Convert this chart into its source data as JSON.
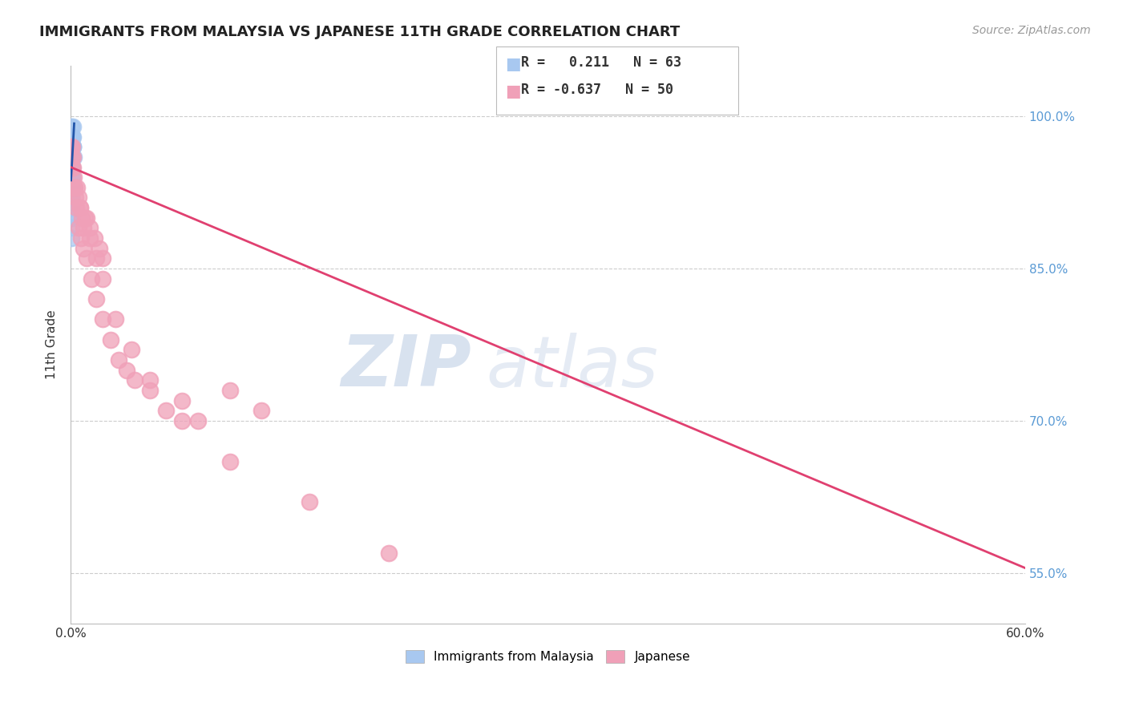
{
  "title": "IMMIGRANTS FROM MALAYSIA VS JAPANESE 11TH GRADE CORRELATION CHART",
  "source": "Source: ZipAtlas.com",
  "ylabel": "11th Grade",
  "right_yticks": [
    "100.0%",
    "85.0%",
    "70.0%",
    "55.0%"
  ],
  "right_ytick_vals": [
    1.0,
    0.85,
    0.7,
    0.55
  ],
  "legend_blue_r": "0.211",
  "legend_blue_n": "63",
  "legend_pink_r": "-0.637",
  "legend_pink_n": "50",
  "blue_color": "#A8C8F0",
  "pink_color": "#F0A0B8",
  "blue_line_color": "#2255AA",
  "pink_line_color": "#E04070",
  "watermark_zip": "ZIP",
  "watermark_atlas": "atlas",
  "xmin": 0.0,
  "xmax": 0.6,
  "ymin": 0.5,
  "ymax": 1.05,
  "grid_color": "#CCCCCC",
  "background_color": "#FFFFFF",
  "blue_scatter_x": [
    0.0002,
    0.0003,
    0.0005,
    0.0004,
    0.0006,
    0.0003,
    0.0004,
    0.0005,
    0.0006,
    0.0007,
    0.0004,
    0.0005,
    0.0003,
    0.0006,
    0.0005,
    0.0004,
    0.0007,
    0.0003,
    0.0005,
    0.0006,
    0.0004,
    0.0005,
    0.0003,
    0.0006,
    0.0007,
    0.0005,
    0.0004,
    0.0006,
    0.0003,
    0.0005,
    0.0007,
    0.0004,
    0.0006,
    0.0005,
    0.0003,
    0.0007,
    0.0004,
    0.0005,
    0.0006,
    0.0003,
    0.0005,
    0.0004,
    0.0006,
    0.0007,
    0.0003,
    0.0005,
    0.0006,
    0.0004,
    0.0007,
    0.0003,
    0.001,
    0.0012,
    0.0009,
    0.0011,
    0.0013,
    0.0008,
    0.001,
    0.0014,
    0.0011,
    0.0009,
    0.0013,
    0.0012,
    0.002
  ],
  "blue_scatter_y": [
    0.99,
    0.97,
    0.98,
    0.96,
    0.98,
    0.97,
    0.96,
    0.98,
    0.97,
    0.96,
    0.95,
    0.97,
    0.96,
    0.97,
    0.95,
    0.96,
    0.98,
    0.94,
    0.97,
    0.96,
    0.95,
    0.94,
    0.96,
    0.95,
    0.97,
    0.96,
    0.94,
    0.97,
    0.95,
    0.94,
    0.96,
    0.93,
    0.95,
    0.94,
    0.93,
    0.95,
    0.92,
    0.93,
    0.94,
    0.91,
    0.92,
    0.9,
    0.93,
    0.94,
    0.89,
    0.91,
    0.92,
    0.88,
    0.93,
    0.9,
    0.98,
    0.97,
    0.96,
    0.98,
    0.97,
    0.95,
    0.97,
    0.99,
    0.96,
    0.95,
    0.98,
    0.97,
    0.96
  ],
  "pink_scatter_x": [
    0.0003,
    0.0005,
    0.0008,
    0.001,
    0.0015,
    0.002,
    0.0025,
    0.003,
    0.004,
    0.005,
    0.006,
    0.007,
    0.008,
    0.01,
    0.012,
    0.015,
    0.018,
    0.02,
    0.0015,
    0.0025,
    0.0035,
    0.005,
    0.0065,
    0.008,
    0.01,
    0.013,
    0.016,
    0.02,
    0.025,
    0.03,
    0.035,
    0.04,
    0.05,
    0.06,
    0.07,
    0.08,
    0.1,
    0.12,
    0.006,
    0.009,
    0.012,
    0.016,
    0.02,
    0.028,
    0.038,
    0.05,
    0.07,
    0.1,
    0.15,
    0.2
  ],
  "pink_scatter_y": [
    0.97,
    0.96,
    0.97,
    0.95,
    0.96,
    0.94,
    0.93,
    0.92,
    0.93,
    0.92,
    0.91,
    0.9,
    0.89,
    0.9,
    0.89,
    0.88,
    0.87,
    0.86,
    0.95,
    0.93,
    0.91,
    0.89,
    0.88,
    0.87,
    0.86,
    0.84,
    0.82,
    0.8,
    0.78,
    0.76,
    0.75,
    0.74,
    0.73,
    0.71,
    0.72,
    0.7,
    0.73,
    0.71,
    0.91,
    0.9,
    0.88,
    0.86,
    0.84,
    0.8,
    0.77,
    0.74,
    0.7,
    0.66,
    0.62,
    0.57
  ],
  "pink_line_x0": 0.0,
  "pink_line_y0": 0.95,
  "pink_line_x1": 0.6,
  "pink_line_y1": 0.555,
  "blue_line_x0": 0.0002,
  "blue_line_y0": 0.937,
  "blue_line_x1": 0.0022,
  "blue_line_y1": 0.993
}
